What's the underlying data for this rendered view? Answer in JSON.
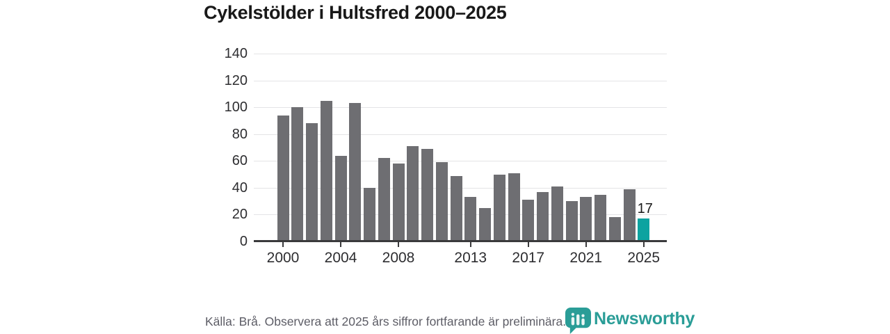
{
  "chart_data": {
    "type": "bar",
    "title": "Cykelstölder i Hultsfred 2000–2025",
    "categories": [
      2000,
      2001,
      2002,
      2003,
      2004,
      2005,
      2006,
      2007,
      2008,
      2009,
      2010,
      2011,
      2012,
      2013,
      2014,
      2015,
      2016,
      2017,
      2018,
      2019,
      2020,
      2021,
      2022,
      2023,
      2024,
      2025
    ],
    "values": [
      94,
      100,
      88,
      105,
      64,
      103,
      40,
      62,
      58,
      71,
      69,
      59,
      49,
      33,
      25,
      50,
      51,
      31,
      37,
      41,
      30,
      33,
      35,
      18,
      39,
      17
    ],
    "xticks": [
      "2000",
      "2004",
      "2008",
      "2013",
      "2017",
      "2021",
      "2025"
    ],
    "yticks": [
      0,
      20,
      40,
      60,
      80,
      100,
      120,
      140
    ],
    "ylim": [
      0,
      140
    ],
    "grid": true,
    "legend_position": "none",
    "bar_color": "#6e6e72",
    "highlight": {
      "year": 2025,
      "color": "#0ca3a0",
      "label": "17"
    }
  },
  "footer": {
    "source_text": "Källa: Brå. Observera att 2025 års siffror fortfarande är preliminära.",
    "brand": "Newsworthy",
    "brand_color": "#2a9d97"
  }
}
